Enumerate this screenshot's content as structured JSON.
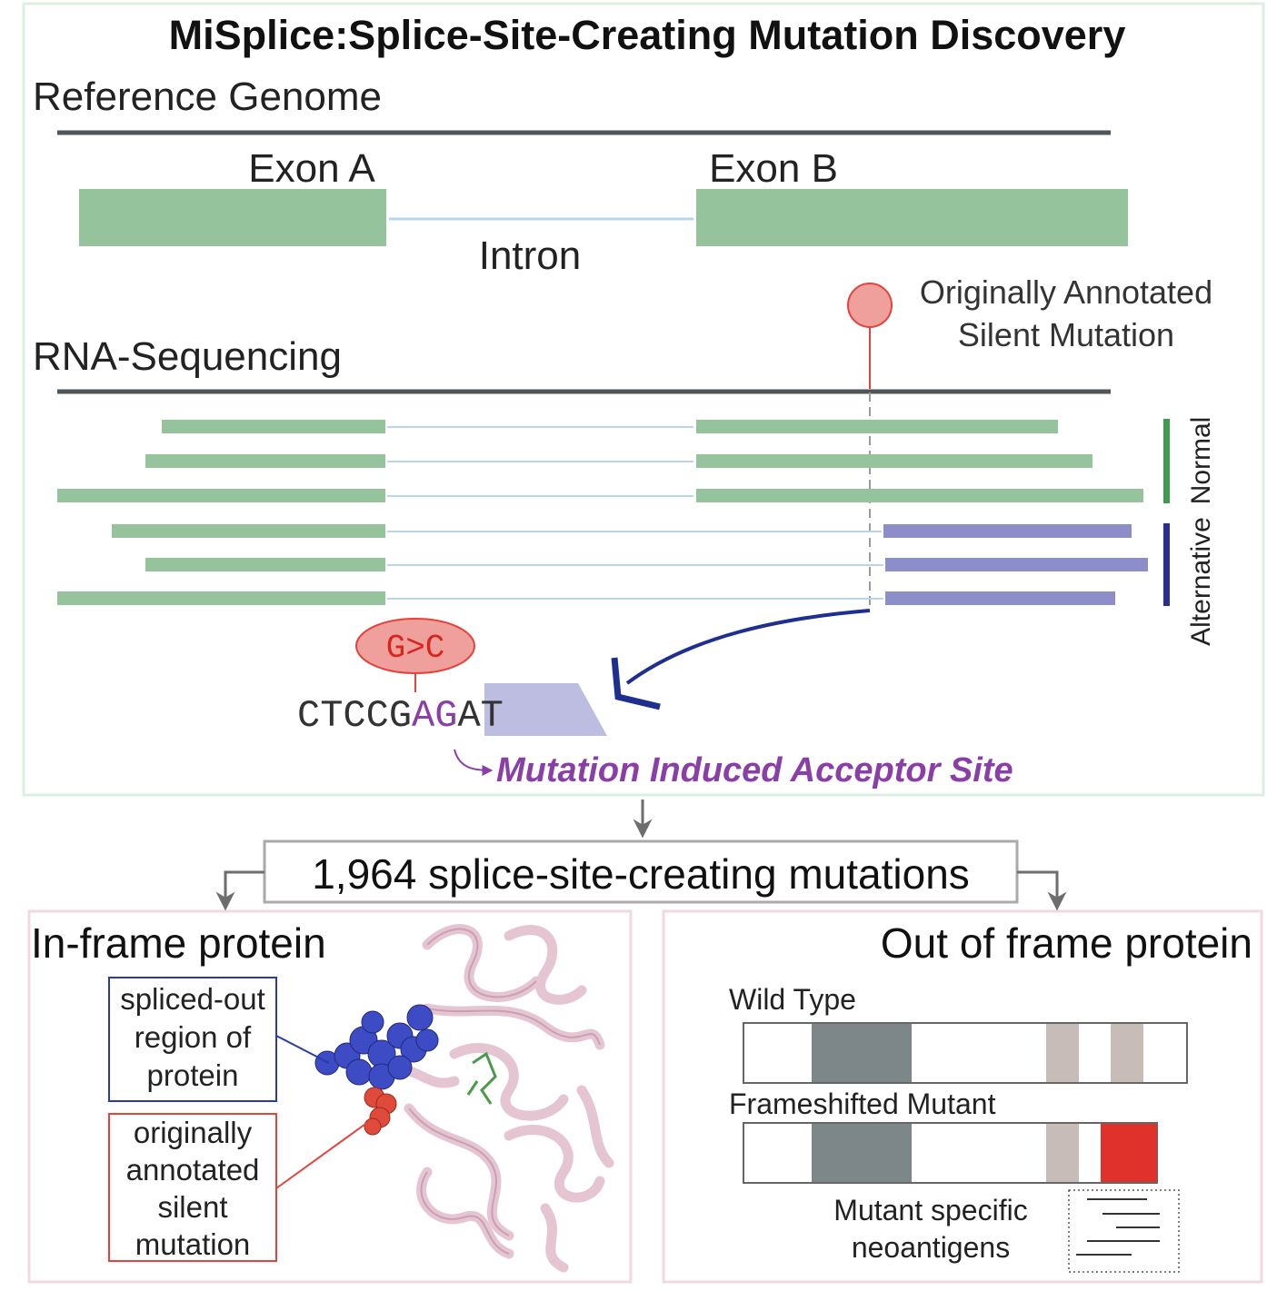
{
  "title": "MiSplice:Splice-Site-Creating Mutation Discovery",
  "top_panel": {
    "reference_label": "Reference Genome",
    "exon_a_label": "Exon A",
    "exon_b_label": "Exon B",
    "intron_label": "Intron",
    "rnaseq_label": "RNA-Sequencing",
    "annotation_line1": "Originally Annotated",
    "annotation_line2": "Silent Mutation",
    "legend_normal": "Normal",
    "legend_alternative": "Alternative",
    "mutation_label": "G>C",
    "sequence_prefix": "CTCCG",
    "sequence_acceptor": "AG",
    "sequence_suffix": "AT",
    "acceptor_label": "Mutation Induced Acceptor Site"
  },
  "summary_label": "1,964 splice-site-creating mutations",
  "in_frame_panel": {
    "title": "In-frame protein",
    "spliced_line1": "spliced-out",
    "spliced_line2": "region of",
    "spliced_line3": "protein",
    "silent_line1": "originally",
    "silent_line2": "annotated",
    "silent_line3": "silent",
    "silent_line4": "mutation"
  },
  "out_frame_panel": {
    "title": "Out of frame protein",
    "wild_type_label": "Wild Type",
    "frameshift_label": "Frameshifted Mutant",
    "neoantigen_line1": "Mutant specific",
    "neoantigen_line2": "neoantigens"
  },
  "colors": {
    "exon_green": "#94c39c",
    "intron_blue": "#b9d6e6",
    "alt_purple": "#8d8ec9",
    "normal_bar": "#3e9b4f",
    "alt_bar": "#2b2f8c",
    "mutation_red": "#e3433c",
    "acceptor_purple": "#8a3fa6",
    "arrow_navy": "#1f2f8f",
    "protein_pink": "#e6c5d3",
    "domain_dark": "#7d878a",
    "domain_light": "#c7bcb8",
    "neo_red": "#e0312b"
  }
}
